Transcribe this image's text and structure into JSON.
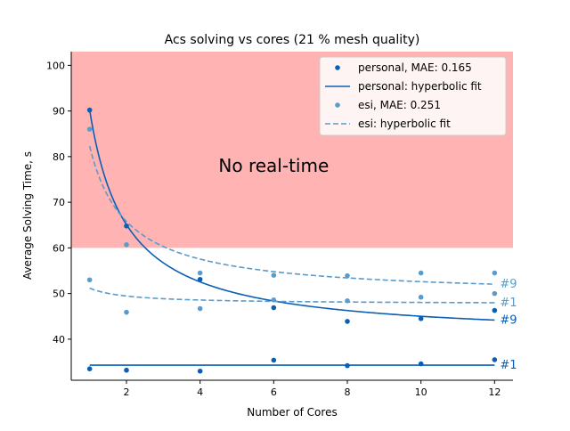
{
  "chart_data": {
    "type": "scatter",
    "title": "Acs solving vs cores (21 % mesh quality)",
    "xlabel": "Number of Cores",
    "ylabel": "Average Solving Time, s",
    "xlim": [
      0.5,
      12.5
    ],
    "ylim": [
      31,
      103
    ],
    "xticks": [
      2,
      4,
      6,
      8,
      10,
      12
    ],
    "yticks": [
      40,
      50,
      60,
      70,
      80,
      90,
      100
    ],
    "grid": false,
    "legend_position": "top-right",
    "region": {
      "label": "No real-time",
      "y_from": 60,
      "y_to": 103,
      "color": "#ffb3b3"
    },
    "colors": {
      "personal": "#0a5fb4",
      "esi": "#5b9bc9"
    },
    "series": [
      {
        "name": "personal, MAE: 0.165",
        "kind": "points",
        "color": "#0a5fb4",
        "x": [
          1,
          2,
          4,
          6,
          8,
          10,
          12,
          1,
          2,
          4,
          6,
          8,
          10,
          12
        ],
        "y": [
          90.2,
          64.8,
          53.1,
          46.9,
          43.9,
          44.5,
          46.3,
          33.5,
          33.2,
          33.0,
          35.4,
          34.2,
          34.6,
          35.5
        ]
      },
      {
        "name": "personal: hyperbolic fit",
        "kind": "fit",
        "style": "solid",
        "color": "#0a5fb4",
        "curves": [
          {
            "a": 50.2,
            "b": 40.0,
            "tag": "#9"
          },
          {
            "a": 0.0,
            "b": 34.3,
            "tag": "#1"
          }
        ]
      },
      {
        "name": "esi, MAE: 0.251",
        "kind": "points",
        "color": "#5b9bc9",
        "x": [
          1,
          2,
          4,
          6,
          8,
          10,
          12,
          1,
          2,
          4,
          6,
          8,
          10,
          12
        ],
        "y": [
          86.0,
          60.7,
          54.5,
          54.0,
          53.9,
          54.5,
          54.5,
          53.0,
          45.9,
          46.7,
          48.6,
          48.4,
          49.2,
          50.0
        ]
      },
      {
        "name": "esi: hyperbolic fit",
        "kind": "fit",
        "style": "dashed",
        "color": "#5b9bc9",
        "curves": [
          {
            "a": 33.0,
            "b": 49.3,
            "tag": "#9"
          },
          {
            "a": 3.5,
            "b": 47.7,
            "tag": "#1"
          }
        ]
      }
    ]
  }
}
